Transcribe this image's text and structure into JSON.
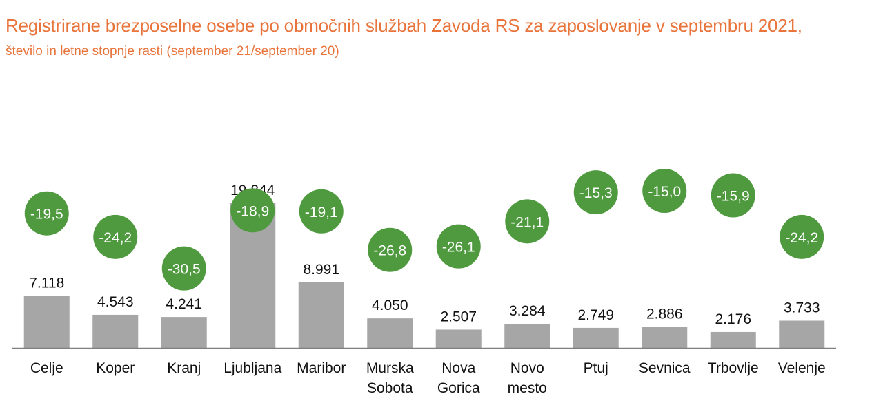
{
  "title": "Registrirane brezposelne osebe po območnih službah Zavoda RS za zaposlovanje v septembru 2021,",
  "subtitle": "število in letne stopnje rasti (september 21/september 20)",
  "colors": {
    "bar": "#a6a6a6",
    "circle": "#4f9a3f",
    "title": "#e8743b",
    "axis": "#808080"
  },
  "chart_data": {
    "type": "bar",
    "categories": [
      [
        "Celje"
      ],
      [
        "Koper"
      ],
      [
        "Kranj"
      ],
      [
        "Ljubljana"
      ],
      [
        "Maribor"
      ],
      [
        "Murska",
        "Sobota"
      ],
      [
        "Nova",
        "Gorica"
      ],
      [
        "Novo",
        "mesto"
      ],
      [
        "Ptuj"
      ],
      [
        "Sevnica"
      ],
      [
        "Trbovlje"
      ],
      [
        "Velenje"
      ]
    ],
    "values": [
      7118,
      4543,
      4241,
      19844,
      8991,
      4050,
      2507,
      3284,
      2749,
      2886,
      2176,
      3733
    ],
    "value_labels": [
      "7.118",
      "4.543",
      "4.241",
      "19.844",
      "8.991",
      "4.050",
      "2.507",
      "3.284",
      "2.749",
      "2.886",
      "2.176",
      "3.733"
    ],
    "growth_rates": [
      -19.5,
      -24.2,
      -30.5,
      -18.9,
      -19.1,
      -26.8,
      -26.1,
      -21.1,
      -15.3,
      -15.0,
      -15.9,
      -24.2
    ],
    "growth_labels": [
      "-19,5",
      "-24,2",
      "-30,5",
      "-18,9",
      "-19,1",
      "-26,8",
      "-26,1",
      "-21,1",
      "-15,3",
      "-15,0",
      "-15,9",
      "-24,2"
    ],
    "ylim": [
      0,
      20000
    ],
    "growth_ylim": [
      -45,
      0
    ]
  }
}
